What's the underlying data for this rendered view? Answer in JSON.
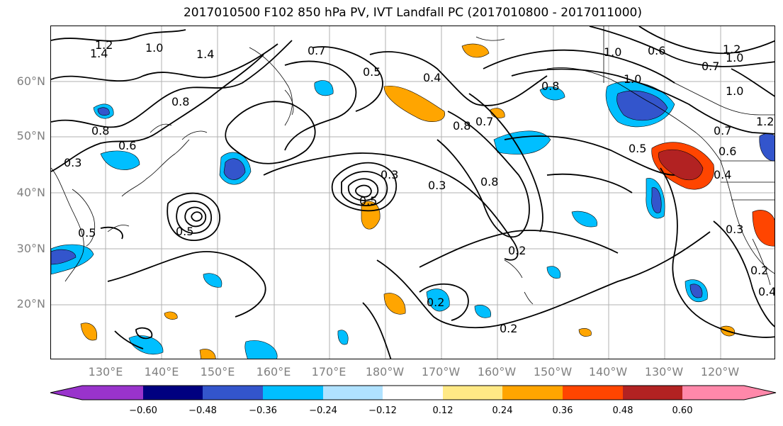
{
  "title": "2017010500 F102 850 hPa PV, IVT Landfall PC (2017010800 - 2017011000)",
  "lat_labels": [
    "60°N",
    "50°N",
    "40°N",
    "30°N",
    "20°N"
  ],
  "lon_labels": [
    "130°E",
    "140°E",
    "150°E",
    "160°E",
    "170°E",
    "180°W",
    "170°W",
    "160°W",
    "150°W",
    "140°W",
    "130°W",
    "120°W"
  ],
  "colorbar": {
    "colors": [
      "#9933cc",
      "#000080",
      "#3355cc",
      "#00bfff",
      "#b0e2ff",
      "#ffffff",
      "#ffe985",
      "#ffa500",
      "#ff4500",
      "#b22222",
      "#ff88aa"
    ],
    "tick_labels": [
      "−0.60",
      "−0.48",
      "−0.36",
      "−0.24",
      "−0.12",
      "0.12",
      "0.24",
      "0.36",
      "0.48",
      "0.60"
    ]
  },
  "contour_labels": [
    "1.2",
    "1.4",
    "1.0",
    "1.4",
    "0.7",
    "0.5",
    "0.4",
    "0.8",
    "0.8",
    "0.6",
    "0.3",
    "0.8",
    "0.7",
    "0.3",
    "0.3",
    "0.5",
    "0.8",
    "0.5",
    "0.5",
    "0.2",
    "0.2",
    "0.2",
    "0.8",
    "1.0",
    "0.6",
    "1.0",
    "1.2",
    "1.0",
    "0.7",
    "0.5",
    "0.6",
    "0.7",
    "0.4",
    "1.0",
    "1.2",
    "0.3",
    "0.2",
    "0.4"
  ]
}
